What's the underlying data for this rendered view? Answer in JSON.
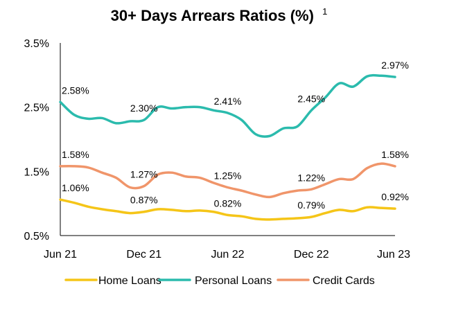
{
  "chart_data": {
    "type": "line",
    "title": "30+ Days Arrears Ratios (%)",
    "title_superscript": "1",
    "xlabel": "",
    "ylabel": "",
    "x_tick_labels": [
      "Jun 21",
      "Dec 21",
      "Jun 22",
      "Dec 22",
      "Jun 23"
    ],
    "y_tick_labels": [
      "3.5%",
      "2.5%",
      "1.5%",
      "0.5%"
    ],
    "ylim": [
      0.5,
      3.5
    ],
    "y_ticks": [
      3.5,
      2.5,
      1.5,
      0.5
    ],
    "x_range": [
      0,
      24
    ],
    "x_tick_positions": [
      0,
      6,
      12,
      18,
      24
    ],
    "grid": false,
    "legend_position": "bottom",
    "series": [
      {
        "name": "Home Loans",
        "color": "#F5C518",
        "x": [
          0,
          1,
          2,
          3,
          4,
          5,
          6,
          7,
          8,
          9,
          10,
          11,
          12,
          13,
          14,
          15,
          16,
          17,
          18,
          19,
          20,
          21,
          22,
          23,
          24
        ],
        "values": [
          1.06,
          1.01,
          0.95,
          0.91,
          0.88,
          0.85,
          0.87,
          0.91,
          0.9,
          0.88,
          0.89,
          0.87,
          0.82,
          0.8,
          0.76,
          0.75,
          0.76,
          0.77,
          0.79,
          0.85,
          0.9,
          0.88,
          0.94,
          0.93,
          0.92
        ],
        "point_labels": [
          {
            "x": 0,
            "text": "1.06%"
          },
          {
            "x": 6,
            "text": "0.87%"
          },
          {
            "x": 12,
            "text": "0.82%"
          },
          {
            "x": 18,
            "text": "0.79%"
          },
          {
            "x": 24,
            "text": "0.92%"
          }
        ]
      },
      {
        "name": "Personal Loans",
        "color": "#2BBBAD",
        "x": [
          0,
          1,
          2,
          3,
          4,
          5,
          6,
          7,
          8,
          9,
          10,
          11,
          12,
          13,
          14,
          15,
          16,
          17,
          18,
          19,
          20,
          21,
          22,
          23,
          24
        ],
        "values": [
          2.58,
          2.38,
          2.32,
          2.33,
          2.25,
          2.28,
          2.3,
          2.5,
          2.48,
          2.5,
          2.5,
          2.45,
          2.41,
          2.3,
          2.08,
          2.05,
          2.17,
          2.2,
          2.45,
          2.65,
          2.87,
          2.82,
          2.98,
          2.99,
          2.97
        ],
        "point_labels": [
          {
            "x": 0,
            "text": "2.58%"
          },
          {
            "x": 6,
            "text": "2.30%"
          },
          {
            "x": 12,
            "text": "2.41%"
          },
          {
            "x": 18,
            "text": "2.45%"
          },
          {
            "x": 24,
            "text": "2.97%"
          }
        ]
      },
      {
        "name": "Credit Cards",
        "color": "#F0956A",
        "x": [
          0,
          1,
          2,
          3,
          4,
          5,
          6,
          7,
          8,
          9,
          10,
          11,
          12,
          13,
          14,
          15,
          16,
          17,
          18,
          19,
          20,
          21,
          22,
          23,
          24
        ],
        "values": [
          1.58,
          1.58,
          1.56,
          1.48,
          1.4,
          1.25,
          1.27,
          1.45,
          1.48,
          1.42,
          1.4,
          1.32,
          1.25,
          1.2,
          1.14,
          1.1,
          1.16,
          1.2,
          1.22,
          1.3,
          1.38,
          1.38,
          1.55,
          1.62,
          1.58
        ],
        "point_labels": [
          {
            "x": 0,
            "text": "1.58%"
          },
          {
            "x": 6,
            "text": "1.27%"
          },
          {
            "x": 12,
            "text": "1.25%"
          },
          {
            "x": 18,
            "text": "1.22%"
          },
          {
            "x": 24,
            "text": "1.58%"
          }
        ]
      }
    ]
  }
}
